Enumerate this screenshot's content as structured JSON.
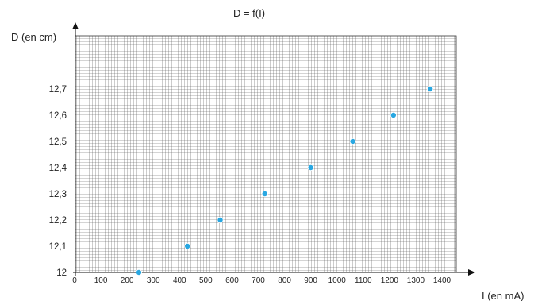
{
  "chart_data": {
    "type": "scatter",
    "title": "D = f(I)",
    "xlabel": "I (en mA)",
    "ylabel": "D (en cm)",
    "xlim": [
      0,
      1400
    ],
    "ylim": [
      12,
      12.7
    ],
    "x_ticks": [
      "0",
      "100",
      "200",
      "300",
      "400",
      "500",
      "600",
      "700",
      "800",
      "900",
      "1000",
      "1100",
      "1200",
      "1300",
      "1400"
    ],
    "y_ticks": [
      "12",
      "12,1",
      "12,2",
      "12,3",
      "12,4",
      "12,5",
      "12,6",
      "12,7"
    ],
    "grid": true,
    "point_color": "#29a7e1",
    "points": [
      {
        "x": 245,
        "y": 12.0
      },
      {
        "x": 430,
        "y": 12.1
      },
      {
        "x": 555,
        "y": 12.2
      },
      {
        "x": 725,
        "y": 12.3
      },
      {
        "x": 900,
        "y": 12.4
      },
      {
        "x": 1060,
        "y": 12.5
      },
      {
        "x": 1215,
        "y": 12.6
      },
      {
        "x": 1355,
        "y": 12.7
      }
    ]
  }
}
